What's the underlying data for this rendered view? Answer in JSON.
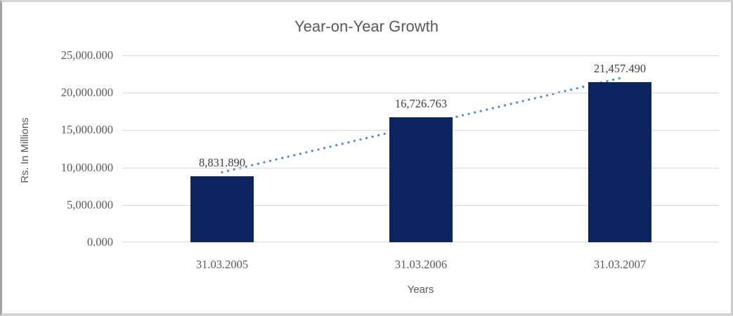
{
  "window": {
    "background": "#ffffff",
    "border_color": "#d6d6d6",
    "border_left_color": "#a3a3a3"
  },
  "chart_data": {
    "type": "bar",
    "title": "Year-on-Year Growth",
    "xlabel": "Years",
    "ylabel": "Rs. In Millions",
    "categories": [
      "31.03.2005",
      "31.03.2006",
      "31.03.2007"
    ],
    "values": [
      8831.89,
      16726.763,
      21457.49
    ],
    "value_labels": [
      "8,831.890",
      "16,726.763",
      "21,457.490"
    ],
    "ylim": [
      0,
      25000
    ],
    "ytick_step": 5000,
    "ytick_labels_top_to_bottom": [
      "25,000.000",
      "20,000.000",
      "15,000.000",
      "10,000.000",
      "5,000.000",
      "0.000"
    ],
    "grid": true,
    "legend": "none",
    "trendline": {
      "type": "linear",
      "style": "round-dot",
      "color": "#4e87cd"
    },
    "colors": {
      "bar": "#0a2560",
      "gridline": "#d9d9d9",
      "tick_label": "#595959",
      "data_label": "#404040",
      "title": "#595959",
      "axis_title": "#595959"
    }
  }
}
